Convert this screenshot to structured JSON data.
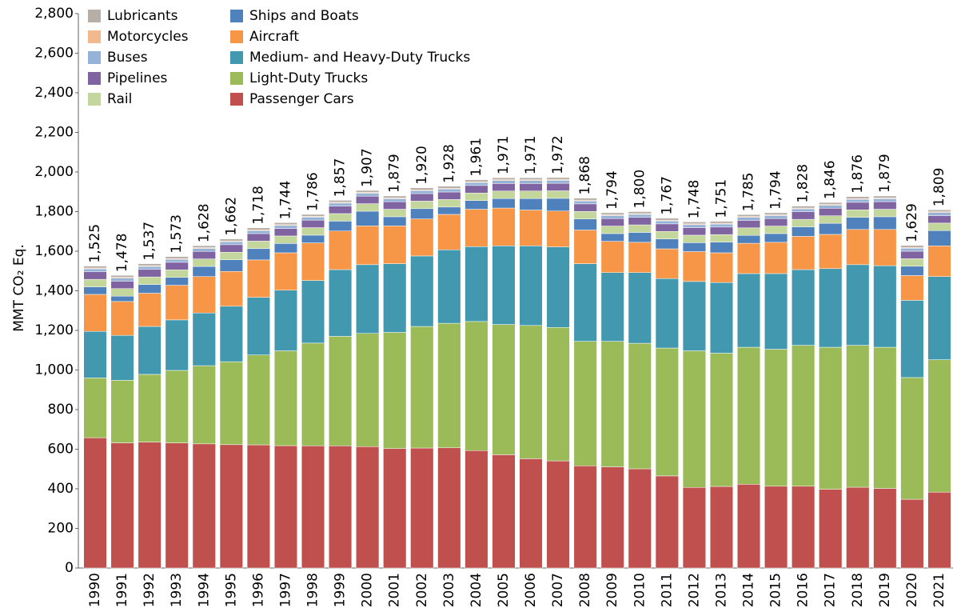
{
  "chart_data": {
    "type": "stacked-bar",
    "y_label": "MMT CO₂ Eq.",
    "categories": [
      "1990",
      "1991",
      "1992",
      "1993",
      "1994",
      "1995",
      "1996",
      "1997",
      "1998",
      "1999",
      "2000",
      "2001",
      "2002",
      "2003",
      "2004",
      "2005",
      "2006",
      "2007",
      "2008",
      "2009",
      "2010",
      "2011",
      "2012",
      "2013",
      "2014",
      "2015",
      "2016",
      "2017",
      "2018",
      "2019",
      "2020",
      "2021"
    ],
    "ylim": [
      0,
      2800
    ],
    "yticks": [
      0,
      200,
      400,
      600,
      800,
      {
        "value": 1000,
        "label": "1,000"
      },
      {
        "value": 1200,
        "label": "1,200"
      },
      {
        "value": 1400,
        "label": "1,400"
      },
      {
        "value": 1600,
        "label": "1,600"
      },
      {
        "value": 1800,
        "label": "1,800"
      },
      {
        "value": 2000,
        "label": "2,000"
      },
      {
        "value": 2200,
        "label": "2,200"
      },
      {
        "value": 2400,
        "label": "2,400"
      },
      {
        "value": 2600,
        "label": "2,600"
      },
      {
        "value": 2800,
        "label": "2,800"
      }
    ],
    "series": [
      {
        "name": "Passenger Cars",
        "color": "#c0504d",
        "values": [
          658,
          632,
          636,
          632,
          627,
          623,
          622,
          618,
          617,
          617,
          613,
          603,
          606,
          607,
          593,
          572,
          552,
          541,
          516,
          511,
          501,
          465,
          407,
          412,
          423,
          413,
          413,
          398,
          408,
          402,
          347,
          383
        ]
      },
      {
        "name": "Light-Duty Trucks",
        "color": "#9bbb59",
        "values": [
          302,
          316,
          342,
          366,
          395,
          419,
          454,
          479,
          519,
          553,
          572,
          587,
          614,
          629,
          652,
          658,
          673,
          674,
          629,
          634,
          634,
          646,
          690,
          673,
          692,
          692,
          712,
          717,
          717,
          713,
          615,
          669
        ]
      },
      {
        "name": "Medium- and Heavy-Duty Trucks",
        "color": "#4198af",
        "values": [
          235,
          227,
          242,
          255,
          266,
          280,
          291,
          306,
          316,
          337,
          347,
          347,
          356,
          371,
          378,
          397,
          402,
          407,
          392,
          347,
          357,
          351,
          350,
          357,
          372,
          382,
          382,
          397,
          407,
          412,
          390,
          420
        ]
      },
      {
        "name": "Aircraft",
        "color": "#f79646",
        "values": [
          187,
          171,
          168,
          175,
          184,
          176,
          189,
          189,
          190,
          195,
          196,
          191,
          187,
          179,
          189,
          191,
          181,
          181,
          170,
          158,
          153,
          150,
          151,
          150,
          153,
          158,
          168,
          173,
          178,
          183,
          125,
          155
        ]
      },
      {
        "name": "Ships and Boats",
        "color": "#4f81bd",
        "values": [
          38,
          27,
          44,
          40,
          51,
          59,
          57,
          47,
          39,
          50,
          74,
          46,
          52,
          37,
          44,
          48,
          58,
          64,
          56,
          39,
          50,
          50,
          45,
          54,
          40,
          44,
          48,
          56,
          61,
          64,
          47,
          77
        ]
      },
      {
        "name": "Rail",
        "color": "#c3d69b",
        "values": [
          38,
          38,
          38,
          38,
          38,
          38,
          38,
          38,
          38,
          38,
          38,
          38,
          38,
          38,
          38,
          38,
          38,
          38,
          38,
          38,
          38,
          38,
          38,
          38,
          38,
          38,
          38,
          38,
          38,
          38,
          38,
          38
        ]
      },
      {
        "name": "Pipelines",
        "color": "#8064a2",
        "values": [
          38,
          38,
          38,
          38,
          38,
          38,
          38,
          38,
          38,
          38,
          38,
          38,
          38,
          38,
          38,
          38,
          38,
          38,
          38,
          38,
          38,
          38,
          38,
          38,
          38,
          38,
          38,
          38,
          38,
          38,
          38,
          38
        ]
      },
      {
        "name": "Buses",
        "color": "#95b3d7",
        "values": [
          15,
          15,
          15,
          15,
          15,
          15,
          15,
          15,
          15,
          15,
          15,
          15,
          15,
          15,
          15,
          15,
          15,
          15,
          15,
          15,
          15,
          15,
          15,
          15,
          15,
          15,
          15,
          15,
          15,
          15,
          15,
          15
        ]
      },
      {
        "name": "Motorcycles",
        "color": "#f2b98f",
        "values": [
          4,
          4,
          4,
          4,
          4,
          4,
          4,
          4,
          4,
          4,
          4,
          4,
          4,
          4,
          4,
          4,
          4,
          4,
          4,
          4,
          4,
          4,
          4,
          4,
          4,
          4,
          4,
          4,
          4,
          4,
          4,
          4
        ]
      },
      {
        "name": "Lubricants",
        "color": "#b7aea8",
        "values": [
          10,
          10,
          10,
          10,
          10,
          10,
          10,
          10,
          10,
          10,
          10,
          10,
          10,
          10,
          10,
          10,
          10,
          10,
          10,
          10,
          10,
          10,
          10,
          10,
          10,
          10,
          10,
          10,
          10,
          10,
          10,
          10
        ]
      }
    ],
    "totals": {
      "values": [
        1525,
        1478,
        1537,
        1573,
        1628,
        1662,
        1718,
        1744,
        1786,
        1857,
        1907,
        1879,
        1920,
        1928,
        1961,
        1971,
        1971,
        1972,
        1868,
        1794,
        1800,
        1767,
        1748,
        1751,
        1785,
        1794,
        1828,
        1846,
        1876,
        1879,
        1629,
        1809
      ],
      "value_labels": [
        "1,525",
        "1,478",
        "1,537",
        "1,573",
        "1,628",
        "1,662",
        "1,718",
        "1,744",
        "1,786",
        "1,857",
        "1,907",
        "1,879",
        "1,920",
        "1,928",
        "1,961",
        "1,971",
        "1,971",
        "1,972",
        "1,868",
        "1,794",
        "1,800",
        "1,767",
        "1,748",
        "1,751",
        "1,785",
        "1,794",
        "1,828",
        "1,846",
        "1,876",
        "1,879",
        "1,629",
        "1,809"
      ]
    }
  }
}
